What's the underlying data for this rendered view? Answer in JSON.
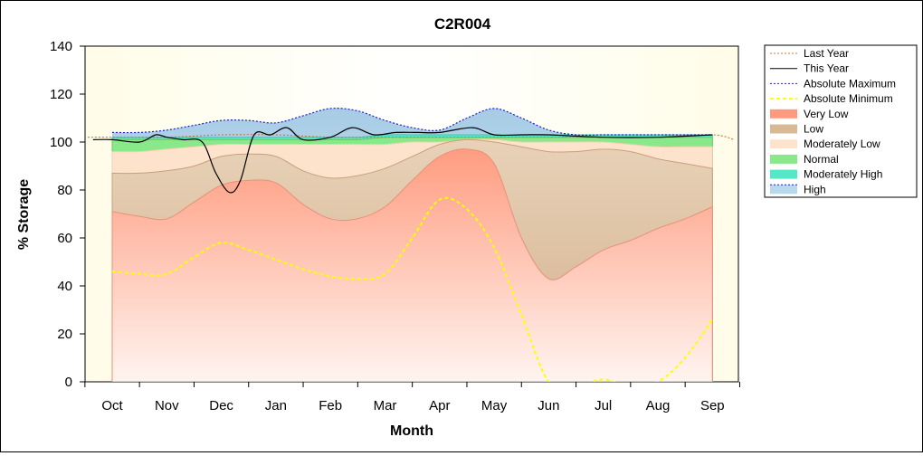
{
  "chart_data": {
    "type": "area",
    "title": "C2R004",
    "xlabel": "Month",
    "ylabel": "% Storage",
    "ylim": [
      0,
      140
    ],
    "yticks": [
      0,
      20,
      40,
      60,
      80,
      100,
      120,
      140
    ],
    "categories": [
      "Oct",
      "Nov",
      "Dec",
      "Jan",
      "Feb",
      "Mar",
      "Apr",
      "May",
      "Jun",
      "Jul",
      "Aug",
      "Sep"
    ],
    "legend_position": "right",
    "series": [
      {
        "name": "Last Year",
        "kind": "line",
        "color": "#c87a3c",
        "dash": "2,2",
        "x": [
          -0.45,
          0,
          1,
          2,
          3,
          4,
          5,
          6,
          7,
          8,
          9,
          10,
          11,
          11.4
        ],
        "values": [
          102,
          102,
          102,
          103,
          103,
          102,
          102,
          102,
          102,
          102,
          102,
          102,
          103,
          101
        ]
      },
      {
        "name": "This Year",
        "kind": "line",
        "color": "#000000",
        "dash": "",
        "x": [
          -0.35,
          0,
          0.5,
          0.8,
          1,
          1.3,
          1.65,
          1.9,
          2.15,
          2.35,
          2.6,
          2.9,
          3.2,
          3.5,
          4,
          4.4,
          4.8,
          5.2,
          5.6,
          6,
          6.6,
          7,
          7.5,
          8,
          9,
          10,
          11
        ],
        "values": [
          101,
          101,
          100,
          103,
          102,
          101,
          100,
          87,
          79,
          84,
          103,
          103,
          106,
          101,
          102,
          106,
          103,
          104,
          104,
          104,
          106,
          103,
          103,
          103,
          102,
          102,
          103
        ]
      },
      {
        "name": "Absolute Maximum",
        "kind": "line",
        "color": "#2020c8",
        "dash": "2,2",
        "x": [
          0,
          0.5,
          1,
          1.5,
          2,
          2.5,
          3,
          3.5,
          4,
          4.5,
          5,
          5.5,
          6,
          6.5,
          7,
          7.5,
          8,
          8.5,
          9,
          9.5,
          10,
          10.5,
          11
        ],
        "values": [
          104,
          104,
          105,
          107,
          109,
          109,
          108,
          111,
          114,
          113,
          109,
          106,
          105,
          110,
          114,
          110,
          105,
          103,
          103,
          103,
          103,
          103,
          103
        ]
      },
      {
        "name": "Absolute Minimum",
        "kind": "line",
        "color": "#ffff00",
        "dash": "4,3",
        "x": [
          0,
          0.5,
          1,
          1.5,
          2,
          2.5,
          3,
          3.5,
          4,
          4.5,
          5,
          5.5,
          6,
          6.5,
          7,
          7.5,
          8,
          8.5,
          9,
          9.5,
          10,
          10.5,
          11
        ],
        "values": [
          46,
          45,
          45,
          52,
          58,
          55,
          51,
          47,
          44,
          43,
          45,
          60,
          76,
          72,
          56,
          28,
          0,
          -2,
          1,
          -2,
          0,
          10,
          26
        ]
      },
      {
        "name": "Very Low",
        "kind": "area",
        "color": "#ff9a80",
        "x": [
          0,
          0.5,
          1,
          1.5,
          2,
          2.5,
          3,
          3.5,
          4,
          4.5,
          5,
          5.5,
          6,
          6.5,
          7,
          7.5,
          8,
          8.5,
          9,
          9.5,
          10,
          10.5,
          11
        ],
        "values": [
          71,
          69,
          68,
          75,
          82,
          84,
          83,
          74,
          68,
          68,
          73,
          84,
          94,
          97,
          91,
          60,
          43,
          48,
          55,
          59,
          64,
          68,
          73
        ]
      },
      {
        "name": "Low",
        "kind": "area",
        "color": "#d9b896",
        "x": [
          0,
          0.5,
          1,
          1.5,
          2,
          2.5,
          3,
          3.5,
          4,
          4.5,
          5,
          5.5,
          6,
          6.5,
          7,
          7.5,
          8,
          8.5,
          9,
          9.5,
          10,
          10.5,
          11
        ],
        "values": [
          87,
          87,
          88,
          90,
          94,
          95,
          94,
          88,
          85,
          86,
          89,
          94,
          99,
          101,
          100,
          98,
          96,
          96,
          97,
          96,
          93,
          91,
          89
        ]
      },
      {
        "name": "Moderately Low",
        "kind": "area",
        "color": "#fde3cc",
        "x": [
          0,
          0.5,
          1,
          1.5,
          2,
          2.5,
          3,
          3.5,
          4,
          4.5,
          5,
          5.5,
          6,
          6.5,
          7,
          7.5,
          8,
          8.5,
          9,
          9.5,
          10,
          10.5,
          11
        ],
        "values": [
          96,
          96,
          97,
          98,
          99,
          99,
          99,
          99,
          99,
          99,
          99,
          100,
          100,
          101,
          101,
          100,
          100,
          100,
          100,
          99,
          98,
          98,
          98
        ]
      },
      {
        "name": "Normal",
        "kind": "area",
        "color": "#88e88a",
        "x": [
          0,
          0.5,
          1,
          1.5,
          2,
          2.5,
          3,
          3.5,
          4,
          4.5,
          5,
          5.5,
          6,
          6.5,
          7,
          7.5,
          8,
          8.5,
          9,
          9.5,
          10,
          10.5,
          11
        ],
        "values": [
          101,
          101,
          101,
          101,
          101,
          101,
          101,
          101,
          101,
          101,
          102,
          102,
          102,
          102,
          102,
          102,
          102,
          102,
          102,
          102,
          102,
          102,
          102
        ]
      },
      {
        "name": "Moderately High",
        "kind": "area",
        "color": "#55e8c8",
        "x": [
          0,
          0.5,
          1,
          1.5,
          2,
          2.5,
          3,
          3.5,
          4,
          4.5,
          5,
          5.5,
          6,
          6.5,
          7,
          7.5,
          8,
          8.5,
          9,
          9.5,
          10,
          10.5,
          11
        ],
        "values": [
          102,
          102,
          102,
          102,
          102,
          102,
          102,
          102,
          102,
          102,
          103,
          103,
          103,
          103,
          103,
          103,
          103,
          103,
          103,
          103,
          103,
          103,
          103
        ]
      },
      {
        "name": "High",
        "kind": "area",
        "color": "#b8d8ec",
        "x": [
          0,
          0.5,
          1,
          1.5,
          2,
          2.5,
          3,
          3.5,
          4,
          4.5,
          5,
          5.5,
          6,
          6.5,
          7,
          7.5,
          8,
          8.5,
          9,
          9.5,
          10,
          10.5,
          11
        ],
        "values": [
          104,
          104,
          105,
          107,
          109,
          109,
          108,
          111,
          114,
          113,
          109,
          106,
          105,
          110,
          114,
          110,
          105,
          103,
          103,
          103,
          103,
          103,
          103
        ]
      }
    ]
  }
}
